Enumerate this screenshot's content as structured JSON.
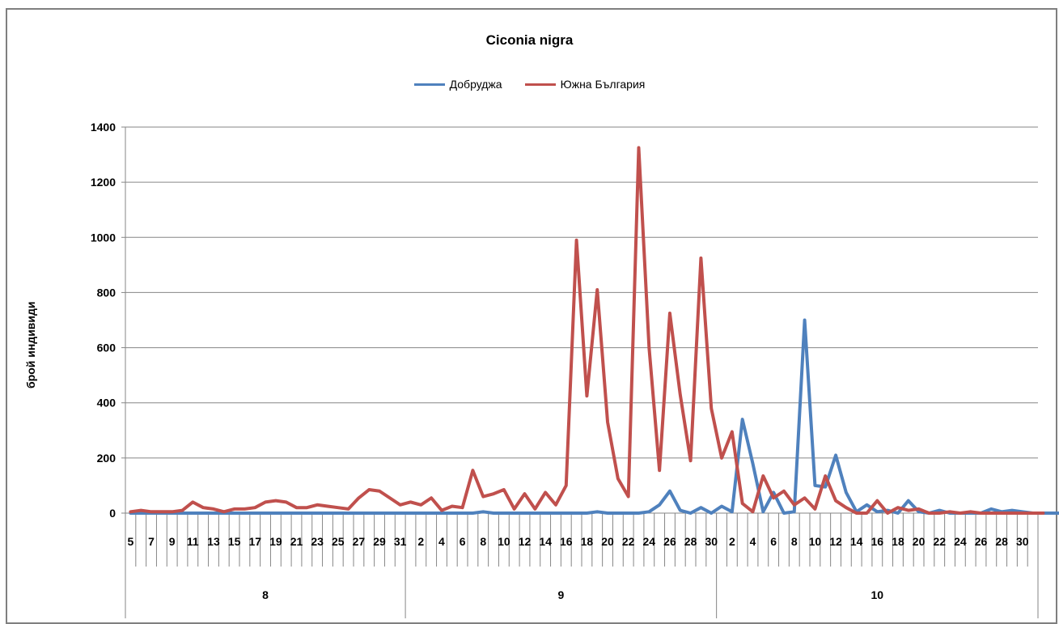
{
  "chart_data": {
    "type": "line",
    "title": "Ciconia nigra",
    "xlabel": "",
    "ylabel": "брой индивиди",
    "ylim": [
      0,
      1400
    ],
    "yticks": [
      0,
      200,
      400,
      600,
      800,
      1000,
      1200,
      1400
    ],
    "grid": "horizontal",
    "legend_position": "top",
    "x_tick_labels": [
      "5",
      "7",
      "9",
      "11",
      "13",
      "15",
      "17",
      "19",
      "21",
      "23",
      "25",
      "27",
      "29",
      "31",
      "2",
      "4",
      "6",
      "8",
      "10",
      "12",
      "14",
      "16",
      "18",
      "20",
      "22",
      "24",
      "26",
      "28",
      "30",
      "2",
      "4",
      "6",
      "8",
      "10",
      "12",
      "14",
      "16",
      "18",
      "20",
      "22",
      "24",
      "26",
      "28",
      "30"
    ],
    "month_groups": [
      {
        "label": "8",
        "first_day": 5,
        "last_day": 31
      },
      {
        "label": "9",
        "first_day": 1,
        "last_day": 30
      },
      {
        "label": "10",
        "first_day": 1,
        "last_day": 31
      }
    ],
    "series": [
      {
        "name": "Добруджа",
        "color": "#4f81bd",
        "values": [
          0,
          0,
          0,
          0,
          0,
          0,
          0,
          0,
          0,
          0,
          0,
          0,
          0,
          0,
          0,
          0,
          0,
          0,
          0,
          0,
          0,
          0,
          0,
          0,
          0,
          0,
          0,
          0,
          0,
          0,
          0,
          0,
          0,
          0,
          5,
          0,
          0,
          0,
          0,
          0,
          0,
          0,
          0,
          0,
          0,
          5,
          0,
          0,
          0,
          0,
          5,
          30,
          80,
          10,
          0,
          20,
          0,
          25,
          5,
          340,
          180,
          5,
          75,
          0,
          5,
          700,
          100,
          95,
          210,
          75,
          5,
          30,
          5,
          10,
          0,
          45,
          5,
          0,
          10,
          0,
          0,
          0,
          0,
          15,
          5,
          10,
          5,
          0,
          0,
          0,
          0,
          0,
          0,
          0,
          0,
          0,
          0,
          0,
          0,
          0,
          0,
          0,
          0,
          0,
          0,
          0,
          0,
          0,
          0,
          0,
          0,
          0,
          0,
          0,
          0,
          0,
          0,
          0,
          0
        ]
      },
      {
        "name": "Южна България",
        "color": "#c0504d",
        "values": [
          5,
          10,
          5,
          5,
          5,
          10,
          40,
          20,
          15,
          5,
          15,
          15,
          20,
          40,
          45,
          40,
          20,
          20,
          30,
          25,
          20,
          15,
          55,
          85,
          80,
          55,
          30,
          40,
          30,
          55,
          10,
          25,
          20,
          155,
          60,
          70,
          85,
          15,
          70,
          15,
          75,
          30,
          100,
          990,
          425,
          810,
          330,
          125,
          60,
          1325,
          600,
          155,
          725,
          430,
          190,
          925,
          380,
          200,
          295,
          35,
          5,
          135,
          55,
          80,
          30,
          55,
          15,
          135,
          45,
          20,
          0,
          0,
          45,
          0,
          20,
          10,
          15,
          0,
          0,
          5,
          0,
          5,
          0,
          0,
          0,
          0,
          0,
          0,
          0
        ]
      }
    ]
  }
}
